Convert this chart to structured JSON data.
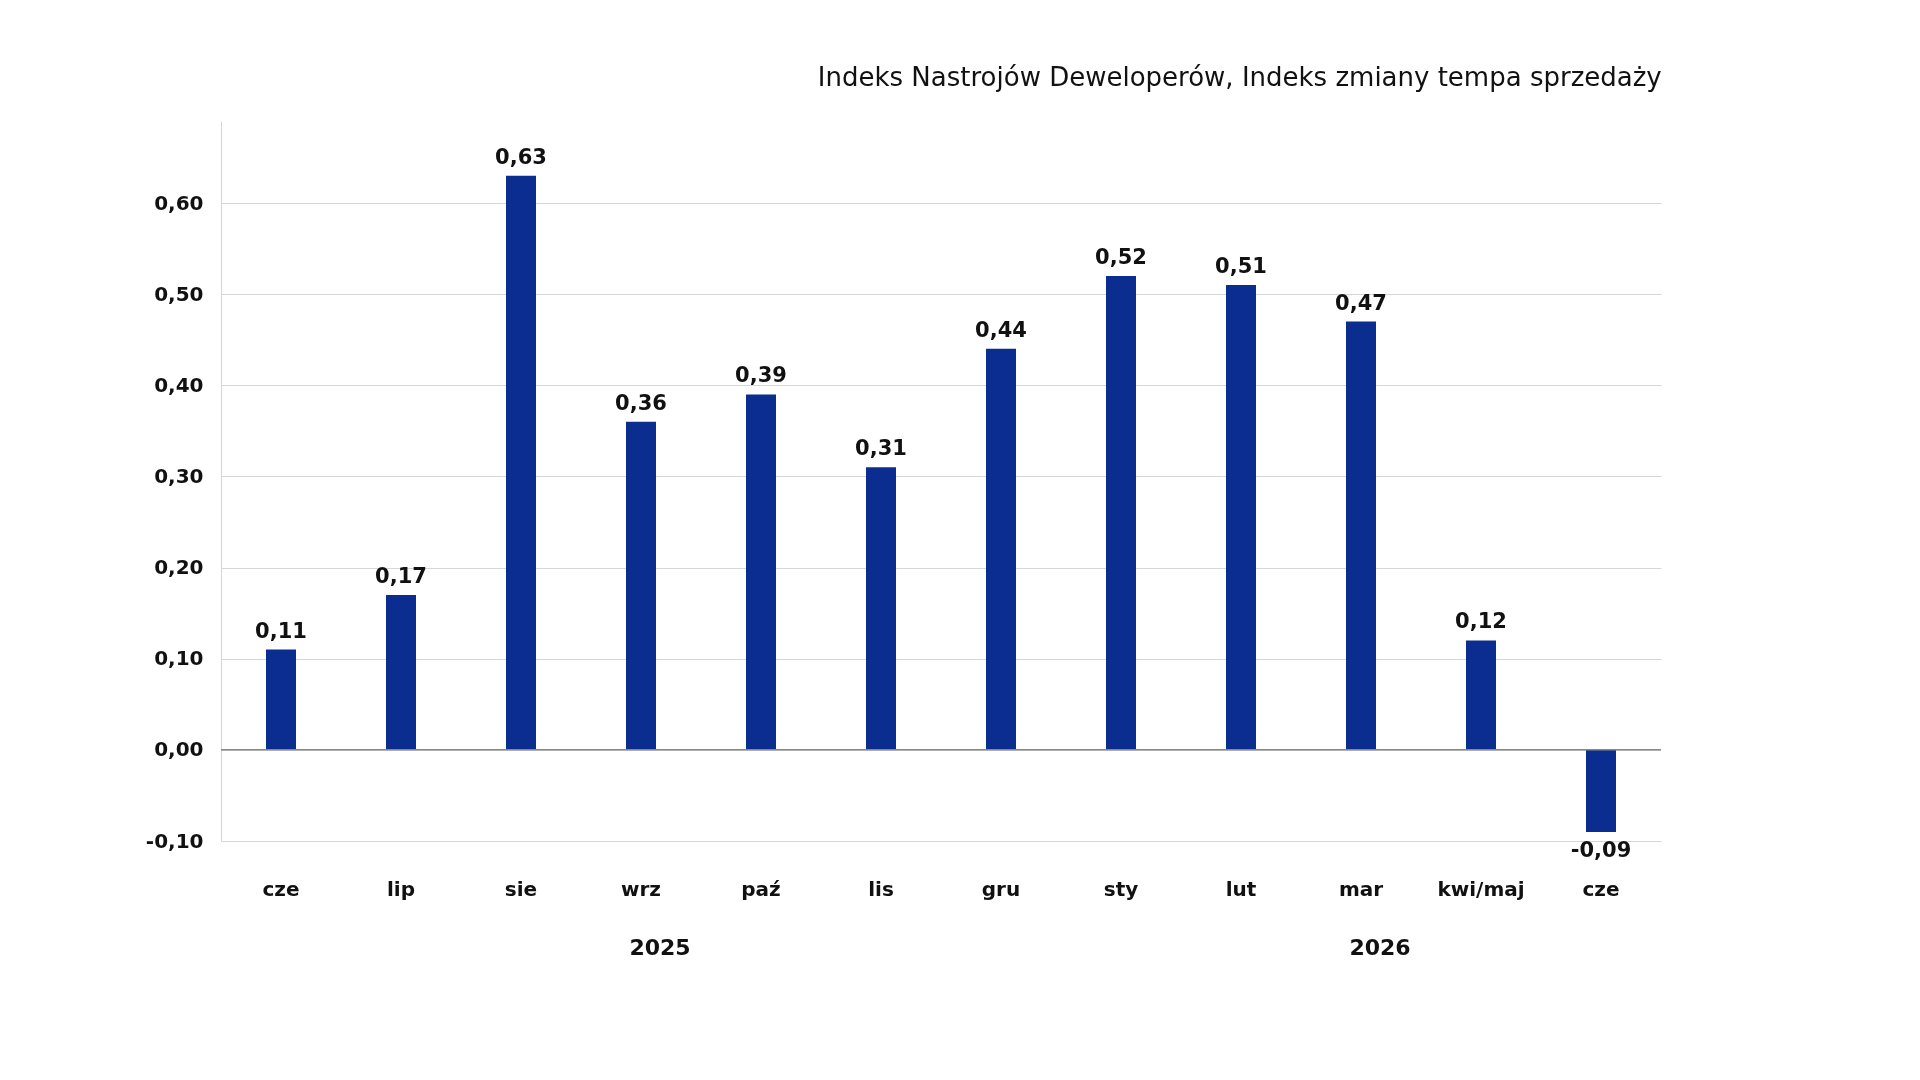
{
  "chart_data": {
    "type": "bar",
    "title": "Indeks Nastrojów Deweloperów, Indeks zmiany tempa sprzedaży",
    "categories": [
      "cze",
      "lip",
      "sie",
      "wrz",
      "paź",
      "lis",
      "gru",
      "sty",
      "lut",
      "mar",
      "kwi/maj",
      "cze"
    ],
    "values": [
      0.11,
      0.17,
      0.63,
      0.36,
      0.39,
      0.31,
      0.44,
      0.52,
      0.51,
      0.47,
      0.12,
      -0.09
    ],
    "value_labels": [
      "0,11",
      "0,17",
      "0,63",
      "0,36",
      "0,39",
      "0,31",
      "0,44",
      "0,52",
      "0,51",
      "0,47",
      "0,12",
      "-0,09"
    ],
    "color": "#0b2d8f",
    "ylim": [
      -0.1,
      0.69
    ],
    "yticks": [
      {
        "value": -0.1,
        "label": "-0,10"
      },
      {
        "value": 0,
        "label": "0,00"
      },
      {
        "value": 0.1,
        "label": "0,10"
      },
      {
        "value": 0.2,
        "label": "0,20"
      },
      {
        "value": 0.3,
        "label": "0,30"
      },
      {
        "value": 0.4,
        "label": "0,40"
      },
      {
        "value": 0.5,
        "label": "0,50"
      },
      {
        "value": 0.6,
        "label": "0,60"
      }
    ],
    "grid": "y",
    "annotations": [
      "2025",
      "2026"
    ]
  }
}
